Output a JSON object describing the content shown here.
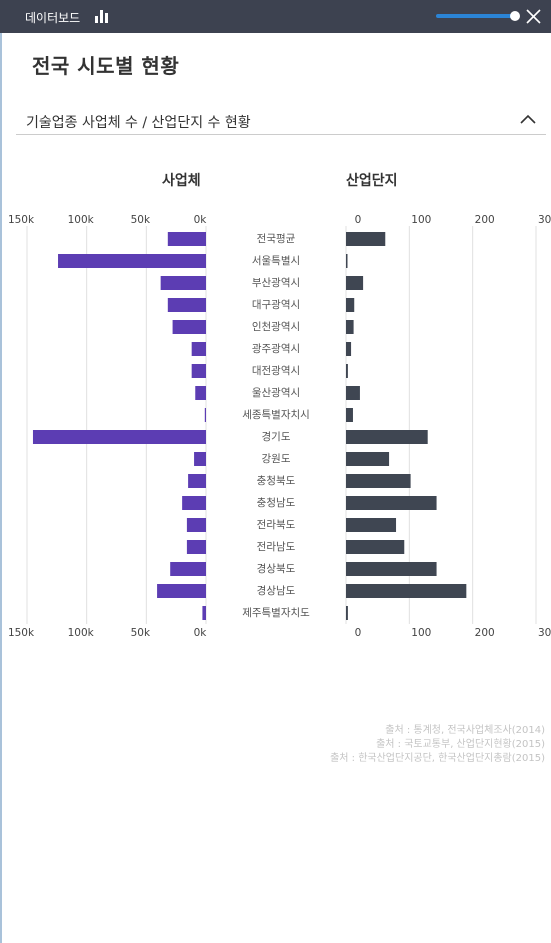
{
  "window": {
    "title": "데이터보드",
    "slider_value": 0.95
  },
  "page_title": "전국 시도별 현황",
  "section": {
    "title": "기술업종 사업체 수 / 산업단지 수 현황"
  },
  "icons": {
    "chart": "bar-chart-icon",
    "close": "close-icon",
    "collapse": "chevron-up-icon"
  },
  "colors": {
    "company_bar": "#5c3db3",
    "complex_bar": "#3f4652",
    "topbar": "#3d4250",
    "slider": "#2b84d6"
  },
  "chart_data": [
    {
      "type": "bar",
      "orientation": "horizontal",
      "direction": "right-to-left",
      "title": "사업체",
      "xlim": [
        0,
        150000
      ],
      "ticks": [
        "150k",
        "100k",
        "50k",
        "0k"
      ],
      "tick_values": [
        150000,
        100000,
        50000,
        0
      ],
      "categories": [
        "전국평균",
        "서울특별시",
        "부산광역시",
        "대구광역시",
        "인천광역시",
        "광주광역시",
        "대전광역시",
        "울산광역시",
        "세종특별자치시",
        "경기도",
        "강원도",
        "충청북도",
        "충청남도",
        "전라북도",
        "전라남도",
        "경상북도",
        "경상남도",
        "제주특별자치도"
      ],
      "values": [
        32000,
        124000,
        38000,
        32000,
        28000,
        12000,
        12000,
        9000,
        1000,
        145000,
        10000,
        15000,
        20000,
        16000,
        16000,
        30000,
        41000,
        3000
      ]
    },
    {
      "type": "bar",
      "orientation": "horizontal",
      "direction": "left-to-right",
      "title": "산업단지",
      "xlim": [
        0,
        300
      ],
      "ticks": [
        "0",
        "100",
        "200",
        "300"
      ],
      "tick_values": [
        0,
        100,
        200,
        300
      ],
      "categories": [
        "전국평균",
        "서울특별시",
        "부산광역시",
        "대구광역시",
        "인천광역시",
        "광주광역시",
        "대전광역시",
        "울산광역시",
        "세종특별자치시",
        "경기도",
        "강원도",
        "충청북도",
        "충청남도",
        "전라북도",
        "전라남도",
        "경상북도",
        "경상남도",
        "제주특별자치도"
      ],
      "values": [
        62,
        2,
        27,
        13,
        12,
        8,
        3,
        22,
        11,
        129,
        68,
        102,
        143,
        79,
        92,
        143,
        190,
        3
      ]
    }
  ],
  "sources": [
    "출처 : 통계청, 전국사업체조사(2014)",
    "출처 : 국토교통부, 산업단지현황(2015)",
    "출처 : 한국산업단지공단, 한국산업단지총람(2015)"
  ]
}
